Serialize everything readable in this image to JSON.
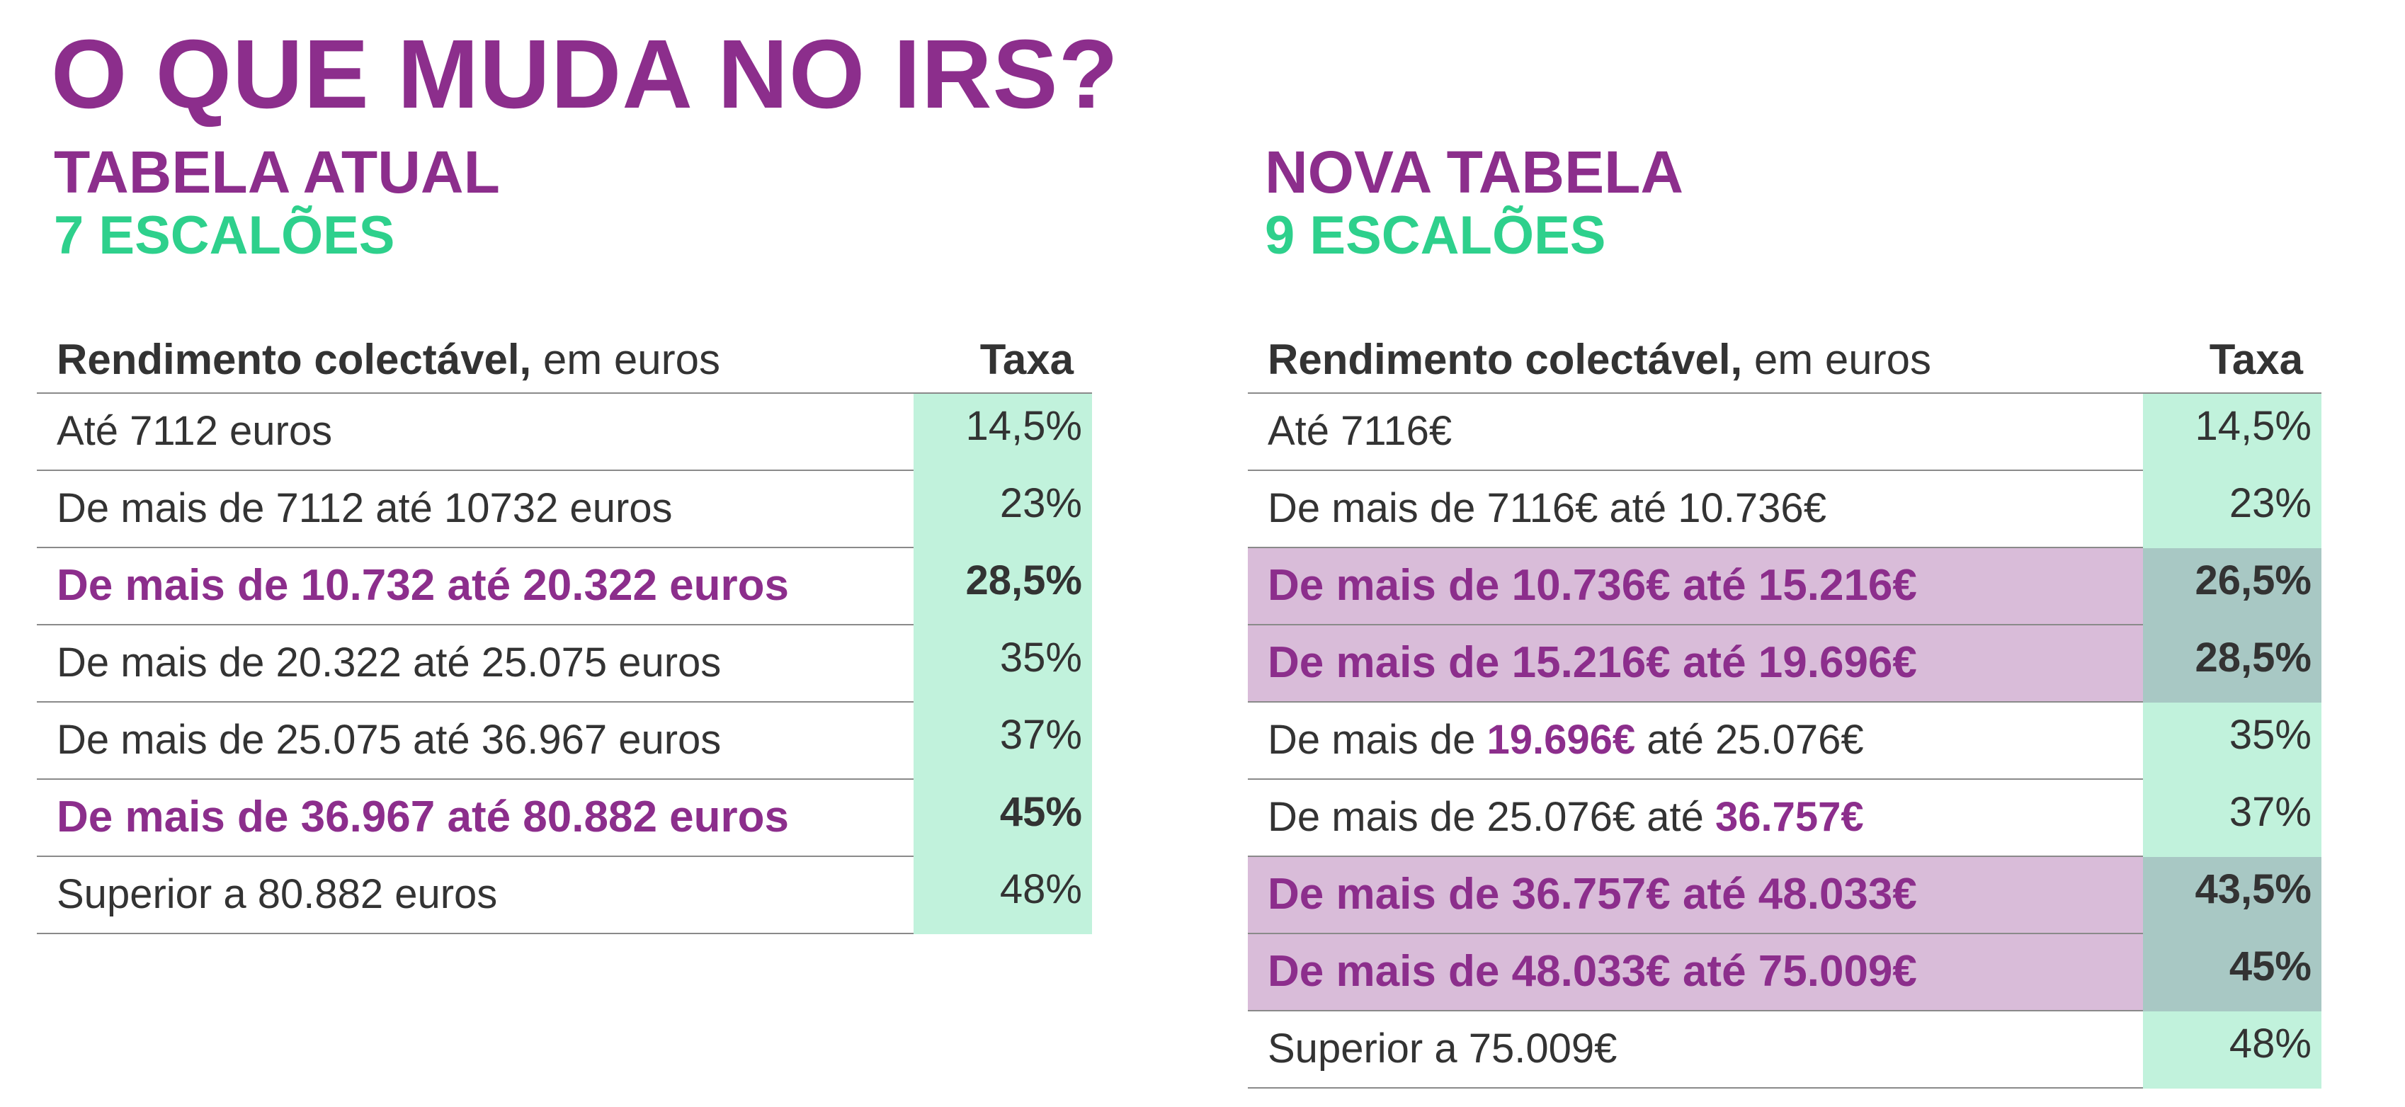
{
  "title": "O QUE MUDA NO IRS?",
  "current": {
    "title": "TABELA ATUAL",
    "subtitle": "7 ESCALÕES",
    "header": {
      "label_bold": "Rendimento colectável,",
      "label_rest": " em euros",
      "rate": "Taxa"
    },
    "rows": [
      {
        "label": "Até 7112 euros",
        "rate": "14,5%"
      },
      {
        "label": "De mais de 7112 até 10732 euros",
        "rate": "23%"
      },
      {
        "label": "De mais de 10.732 até 20.322 euros",
        "rate": "28,5%"
      },
      {
        "label": "De mais de 20.322 até 25.075 euros",
        "rate": "35%"
      },
      {
        "label": "De mais de 25.075 até 36.967 euros",
        "rate": "37%"
      },
      {
        "label": "De mais de 36.967 até 80.882 euros",
        "rate": "45%"
      },
      {
        "label": "Superior a 80.882 euros",
        "rate": "48%"
      }
    ]
  },
  "new": {
    "title": "NOVA TABELA",
    "subtitle": "9 ESCALÕES",
    "header": {
      "label_bold": "Rendimento colectável,",
      "label_rest": " em euros",
      "rate": "Taxa"
    },
    "rows": [
      {
        "label": "Até 7116€",
        "rate": "14,5%"
      },
      {
        "label": "De mais de 7116€ até 10.736€",
        "rate": "23%"
      },
      {
        "label": "De mais de 10.736€ até 15.216€",
        "rate": "26,5%"
      },
      {
        "label": "De mais de 15.216€ até 19.696€",
        "rate": "28,5%"
      },
      {
        "label_pre": "De mais de ",
        "label_em": "19.696€",
        "label_post": " até 25.076€",
        "rate": "35%"
      },
      {
        "label_pre": "De mais de 25.076€ até ",
        "label_em": "36.757€",
        "rate": "37%"
      },
      {
        "label": "De mais de 36.757€ até 48.033€",
        "rate": "43,5%"
      },
      {
        "label": "De mais de 48.033€ até 75.009€",
        "rate": "45%"
      },
      {
        "label": "Superior a 75.009€",
        "rate": "48%"
      }
    ]
  },
  "colors": {
    "purple": "#8c2e8c",
    "green": "#2ed08c",
    "rate_cell": "#c1f2dc",
    "band_row": "#d9bcd9",
    "band_rate": "#a8c8c4"
  }
}
